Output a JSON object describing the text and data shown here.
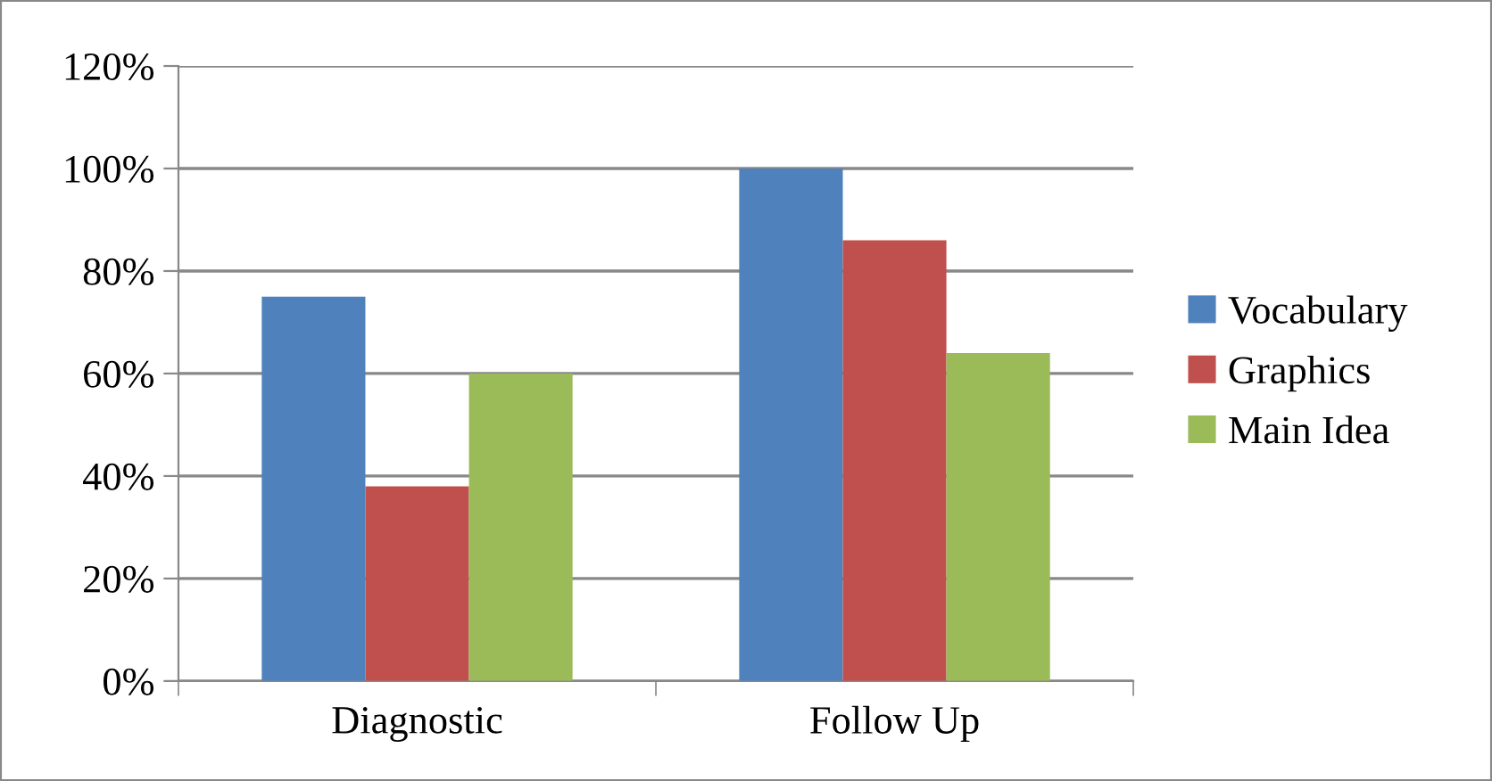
{
  "chart_data": {
    "type": "bar",
    "categories": [
      "Diagnostic",
      "Follow Up"
    ],
    "series": [
      {
        "name": "Vocabulary",
        "color": "#4f81bd",
        "values": [
          75,
          100
        ]
      },
      {
        "name": "Graphics",
        "color": "#c0504d",
        "values": [
          38,
          86
        ]
      },
      {
        "name": "Main Idea",
        "color": "#9bbb59",
        "values": [
          60,
          64
        ]
      }
    ],
    "ylim": [
      0,
      120
    ],
    "yticks": [
      {
        "value": 0,
        "label": "0%"
      },
      {
        "value": 20,
        "label": "20%"
      },
      {
        "value": 40,
        "label": "40%"
      },
      {
        "value": 60,
        "label": "60%"
      },
      {
        "value": 80,
        "label": "80%"
      },
      {
        "value": 100,
        "label": "100%"
      },
      {
        "value": 120,
        "label": "120%"
      }
    ],
    "grid": "y",
    "legend": "right"
  }
}
